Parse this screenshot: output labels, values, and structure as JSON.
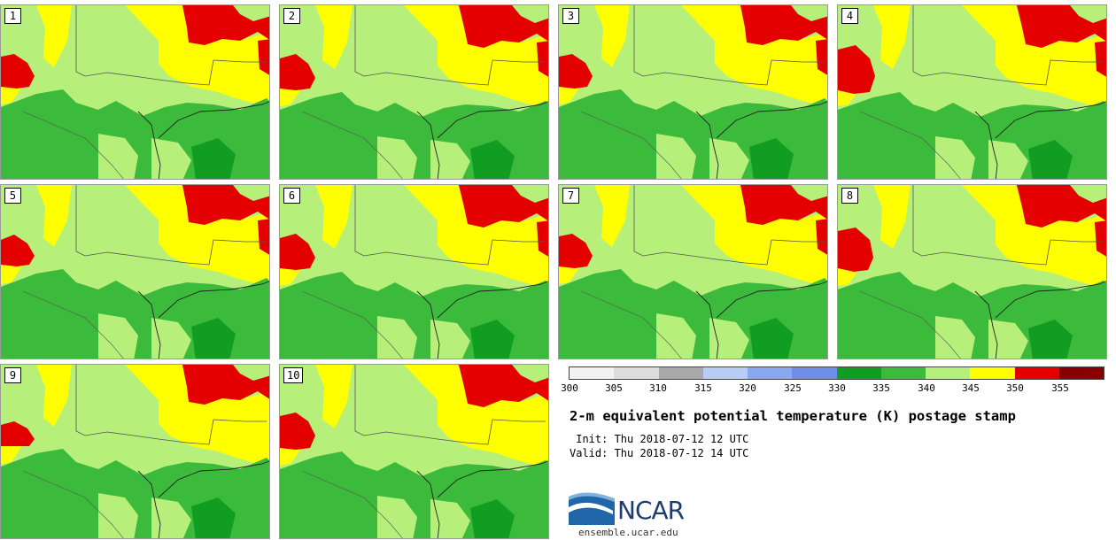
{
  "panels": [
    {
      "number": "1"
    },
    {
      "number": "2"
    },
    {
      "number": "3"
    },
    {
      "number": "4"
    },
    {
      "number": "5"
    },
    {
      "number": "6"
    },
    {
      "number": "7"
    },
    {
      "number": "8"
    },
    {
      "number": "9"
    },
    {
      "number": "10"
    }
  ],
  "colorbar": {
    "colors": [
      "#f2f2f2",
      "#dcdcdc",
      "#a8a8a8",
      "#b7cdf6",
      "#8aa8f0",
      "#6f8ee8",
      "#119d21",
      "#3cba3c",
      "#b6ef7a",
      "#ffff00",
      "#e50000",
      "#8a0000"
    ],
    "ticks": [
      "300",
      "305",
      "310",
      "315",
      "320",
      "325",
      "330",
      "335",
      "340",
      "345",
      "350",
      "355"
    ]
  },
  "title": "2-m equivalent potential temperature (K) postage stamp",
  "init": " Init: Thu 2018-07-12 12 UTC",
  "valid": "Valid: Thu 2018-07-12 14 UTC",
  "logo": {
    "text": "NCAR",
    "url": "ensemble.ucar.edu"
  }
}
